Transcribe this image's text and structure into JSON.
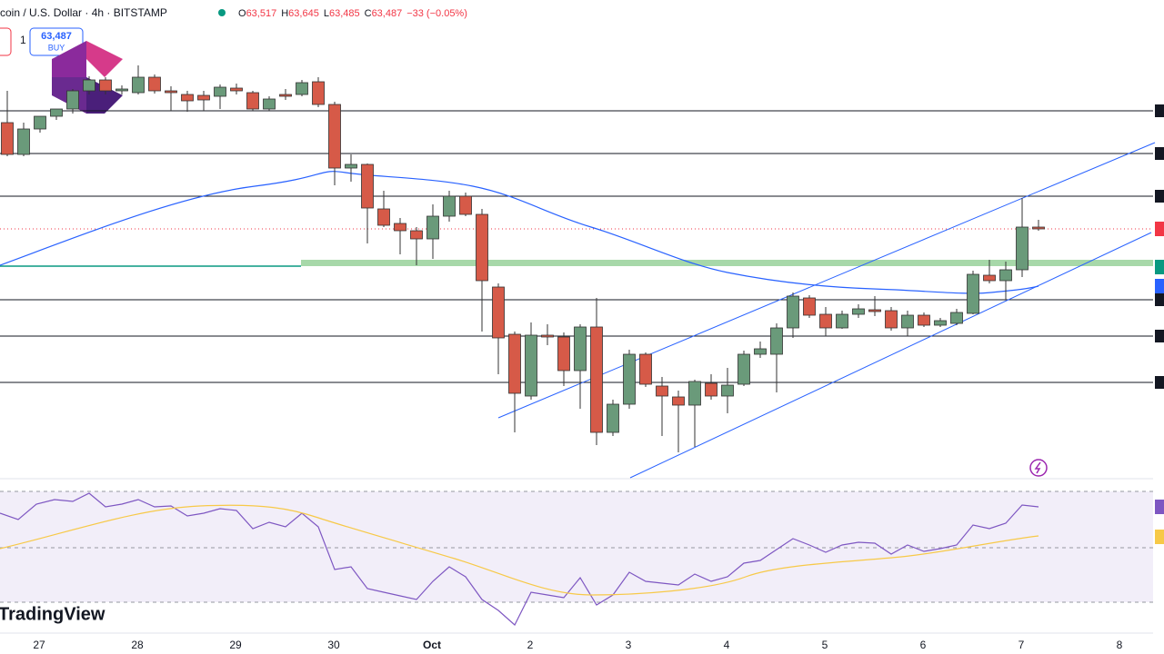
{
  "header": {
    "symbol": "coin / U.S. Dollar · 4h · BITSTAMP",
    "quote": [
      {
        "key": "O",
        "value": "63,517"
      },
      {
        "key": "H",
        "value": "63,645"
      },
      {
        "key": "L",
        "value": "63,485"
      },
      {
        "key": "C",
        "value": "63,487"
      }
    ],
    "change": "−33 (−0.05%)"
  },
  "order_panel": {
    "qty": "1",
    "price": "63,487",
    "action": "BUY"
  },
  "time_axis": [
    "27",
    "28",
    "29",
    "30",
    "Oct",
    "2",
    "3",
    "4",
    "5",
    "6",
    "7",
    "8"
  ],
  "watermark": "TradingView"
}
